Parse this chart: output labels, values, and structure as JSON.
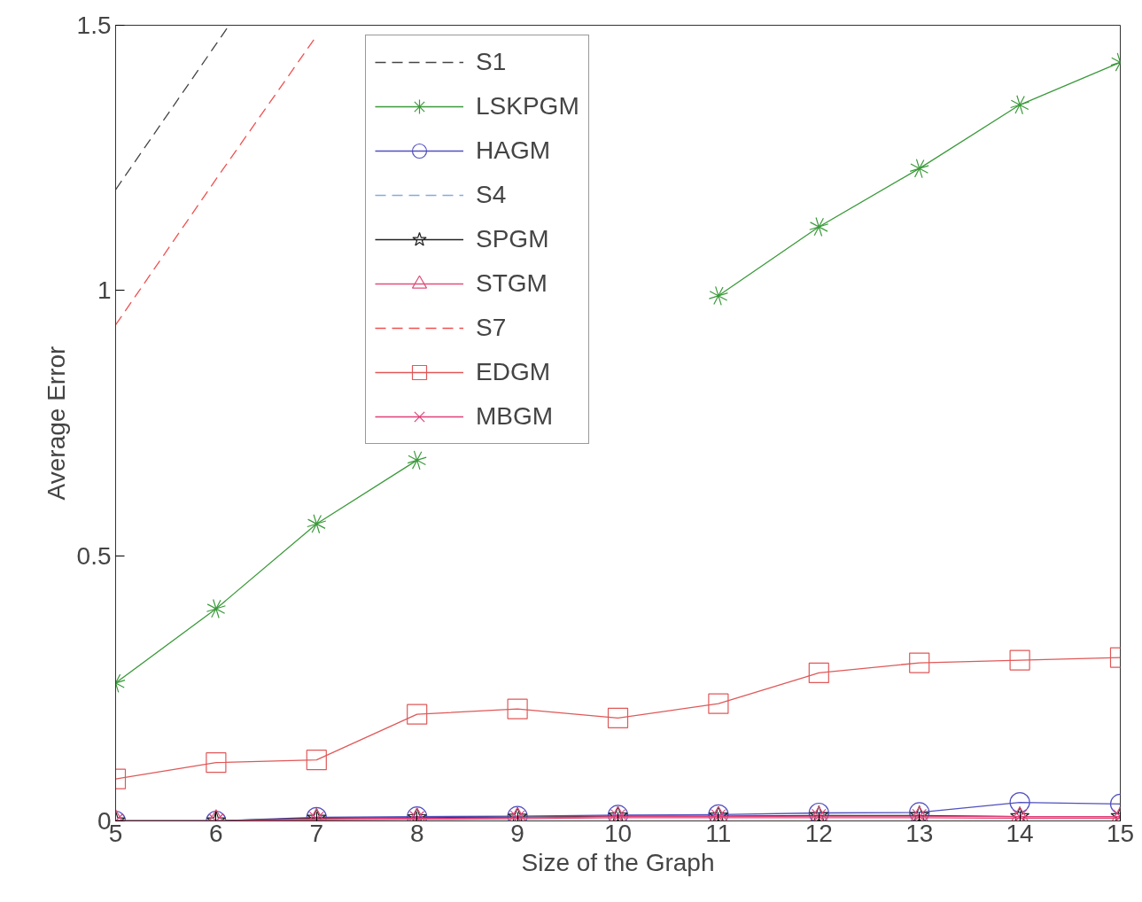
{
  "chart_data": {
    "type": "line",
    "xlabel": "Size of the Graph",
    "ylabel": "Average Error",
    "x": [
      5,
      6,
      7,
      8,
      9,
      10,
      11,
      12,
      13,
      14,
      15
    ],
    "xlim": [
      5,
      15
    ],
    "xticks": [
      5,
      6,
      7,
      8,
      9,
      10,
      11,
      12,
      13,
      14,
      15
    ],
    "ylim": [
      0,
      1.5
    ],
    "yticks": [
      0,
      0.5,
      1,
      1.5
    ],
    "grid": false,
    "legend": "top",
    "series": [
      {
        "name": "S1",
        "color": "#444444",
        "x": [
          5,
          6.13
        ],
        "values": [
          1.19,
          1.5
        ],
        "marker": "none",
        "line_style": "dashed"
      },
      {
        "name": "LSKPGM",
        "color": "#3a9a3a",
        "values": [
          0.26,
          0.4,
          0.56,
          0.68,
          null,
          null,
          0.99,
          1.12,
          1.23,
          1.35,
          1.43
        ],
        "marker": "cross",
        "line_style": "solid"
      },
      {
        "name": "HAGM",
        "color": "#5050c0",
        "values": [
          0,
          0,
          0.007,
          0.008,
          0.009,
          0.011,
          0.012,
          0.015,
          0.016,
          0.035,
          0.032
        ],
        "marker": "circle",
        "line_style": "solid"
      },
      {
        "name": "S4",
        "color": "#88aadd",
        "values": [
          null,
          null,
          null,
          null,
          null,
          null,
          null,
          null,
          null,
          null,
          null
        ],
        "marker": "none",
        "line_style": "dashed"
      },
      {
        "name": "SPGM",
        "color": "#222222",
        "values": [
          0,
          0,
          0.005,
          0.006,
          0.007,
          0.009,
          0.009,
          0.01,
          0.01,
          0.008,
          0.008
        ],
        "marker": "star",
        "line_style": "solid"
      },
      {
        "name": "STGM",
        "color": "#e0507a",
        "values": [
          0,
          0,
          0.002,
          0.003,
          0.004,
          0.006,
          0.006,
          0.006,
          0.006,
          0.005,
          0.005
        ],
        "marker": "triangle",
        "line_style": "solid"
      },
      {
        "name": "S7",
        "color": "#f05050",
        "x": [
          5,
          6,
          7
        ],
        "values": [
          0.935,
          1.21,
          1.48
        ],
        "marker": "none",
        "line_style": "dashed"
      },
      {
        "name": "EDGM",
        "color": "#e05858",
        "values": [
          0.079,
          0.11,
          0.115,
          0.201,
          0.211,
          0.194,
          0.221,
          0.279,
          0.298,
          0.303,
          0.308
        ],
        "marker": "square",
        "line_style": "solid"
      },
      {
        "name": "MBGM",
        "color": "#e0407a",
        "values": [
          0,
          0,
          0.004,
          0.005,
          0.006,
          0.008,
          0.008,
          0.009,
          0.009,
          0.008,
          0.008
        ],
        "marker": "x",
        "line_style": "solid"
      }
    ]
  }
}
